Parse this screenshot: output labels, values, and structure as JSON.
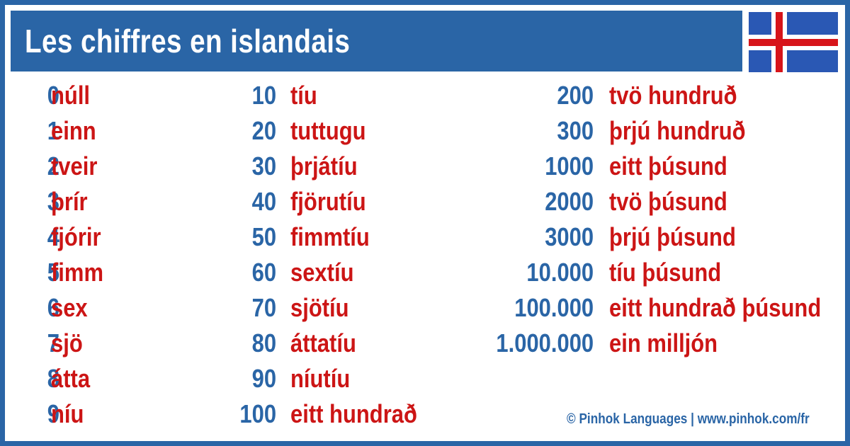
{
  "header": {
    "title": "Les chiffres en islandais",
    "flag_icon": "iceland-flag-icon"
  },
  "colors": {
    "frame": "#2a65a6",
    "number": "#2a65a6",
    "word": "#cc1515",
    "flag_blue": "#2a58b4",
    "flag_red": "#d7141a"
  },
  "columns": [
    [
      {
        "n": "0",
        "w": "núll"
      },
      {
        "n": "1",
        "w": "einn"
      },
      {
        "n": "2",
        "w": "tveir"
      },
      {
        "n": "3",
        "w": "þrír"
      },
      {
        "n": "4",
        "w": "fjórir"
      },
      {
        "n": "5",
        "w": "fimm"
      },
      {
        "n": "6",
        "w": "sex"
      },
      {
        "n": "7",
        "w": "sjö"
      },
      {
        "n": "8",
        "w": "átta"
      },
      {
        "n": "9",
        "w": "níu"
      }
    ],
    [
      {
        "n": "10",
        "w": "tíu"
      },
      {
        "n": "20",
        "w": "tuttugu"
      },
      {
        "n": "30",
        "w": "þrjátíu"
      },
      {
        "n": "40",
        "w": "fjörutíu"
      },
      {
        "n": "50",
        "w": "fimmtíu"
      },
      {
        "n": "60",
        "w": "sextíu"
      },
      {
        "n": "70",
        "w": "sjötíu"
      },
      {
        "n": "80",
        "w": "áttatíu"
      },
      {
        "n": "90",
        "w": "níutíu"
      },
      {
        "n": "100",
        "w": "eitt hundrað"
      }
    ],
    [
      {
        "n": "200",
        "w": "tvö hundruð"
      },
      {
        "n": "300",
        "w": "þrjú hundruð"
      },
      {
        "n": "1000",
        "w": "eitt þúsund"
      },
      {
        "n": "2000",
        "w": "tvö þúsund"
      },
      {
        "n": "3000",
        "w": "þrjú þúsund"
      },
      {
        "n": "10.000",
        "w": "tíu þúsund"
      },
      {
        "n": "100.000",
        "w": "eitt hundrað þúsund"
      },
      {
        "n": "1.000.000",
        "w": "ein milljón"
      }
    ]
  ],
  "footer": {
    "credit": "© Pinhok Languages | www.pinhok.com/fr"
  }
}
